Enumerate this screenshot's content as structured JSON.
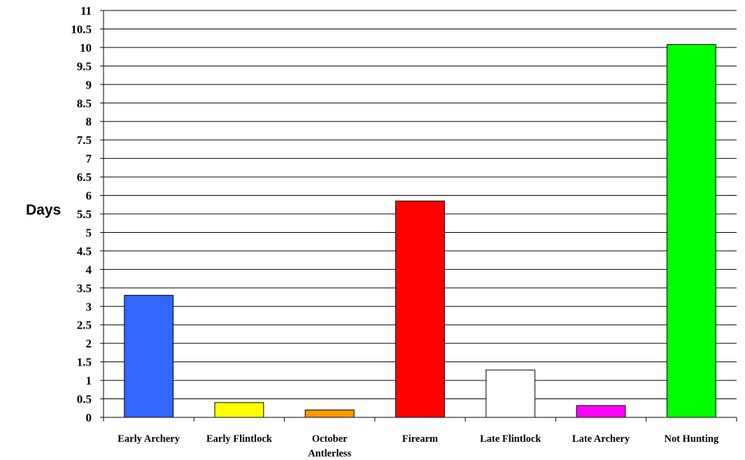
{
  "chart_data": {
    "type": "bar",
    "title": "",
    "xlabel": "",
    "ylabel": "Days",
    "ylim": [
      0,
      11
    ],
    "grid": true,
    "legend": "none",
    "y_ticks": [
      "0",
      "0.5",
      "1",
      "1.5",
      "2",
      "2.5",
      "3",
      "3.5",
      "4",
      "4.5",
      "5",
      "5.5",
      "6",
      "6.5",
      "7",
      "7.5",
      "8",
      "8.5",
      "9",
      "9.5",
      "10",
      "10.5",
      "11"
    ],
    "categories": [
      [
        "Early Archery"
      ],
      [
        "Early Flintlock"
      ],
      [
        "October",
        "Antlerless"
      ],
      [
        "Firearm"
      ],
      [
        "Late Flintlock"
      ],
      [
        "Late Archery"
      ],
      [
        "Not Hunting"
      ]
    ],
    "values": [
      3.3,
      0.4,
      0.2,
      5.85,
      1.28,
      0.32,
      10.08
    ],
    "colors": [
      "#3366ff",
      "#ffff00",
      "#ff9900",
      "#ff0000",
      "#ffffff",
      "#ff00ff",
      "#00ff00"
    ]
  }
}
